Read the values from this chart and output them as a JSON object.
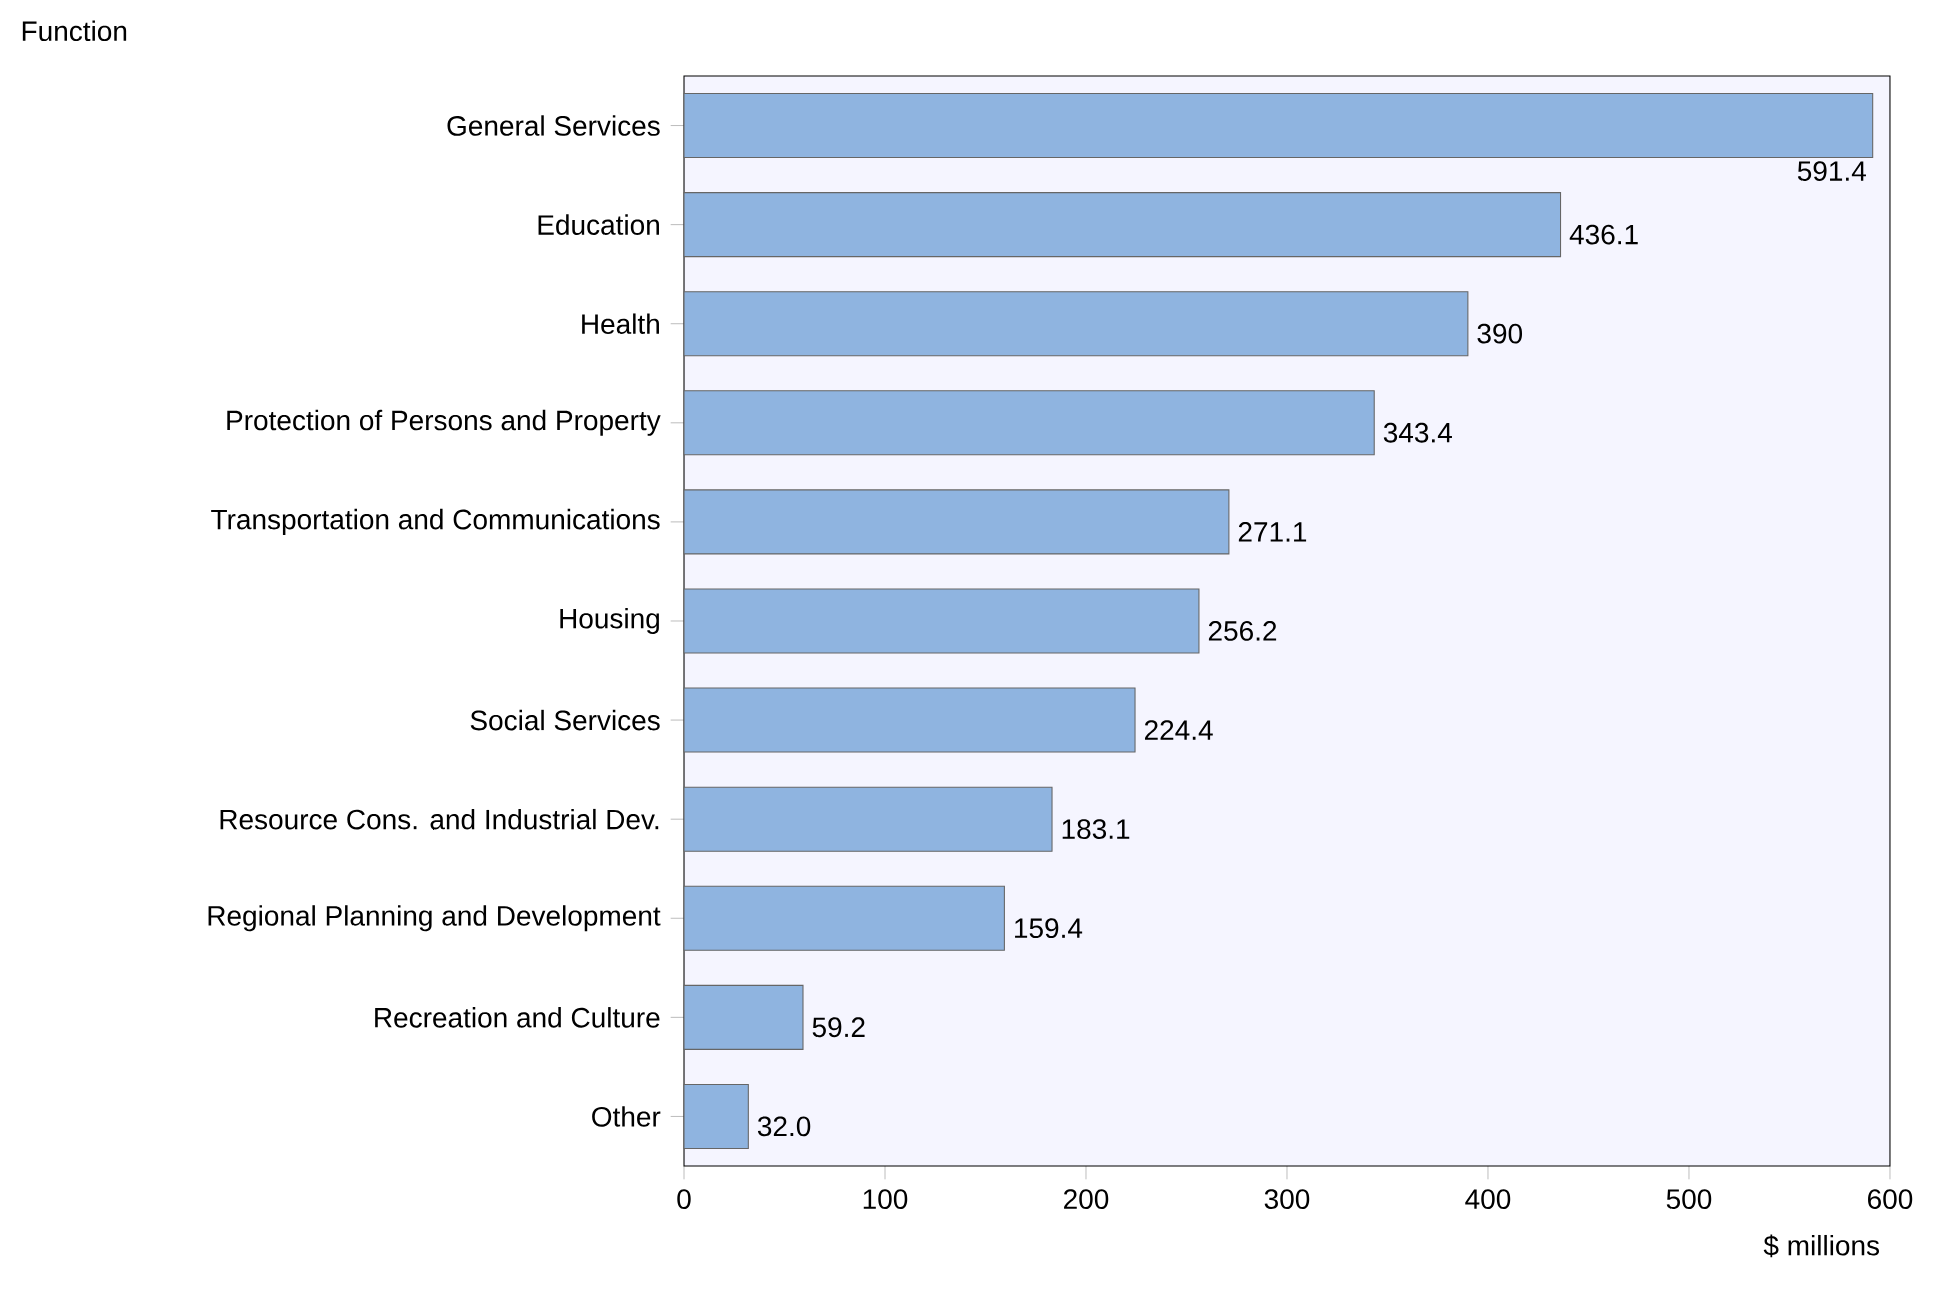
{
  "chart_data": {
    "type": "bar",
    "orientation": "horizontal",
    "xlabel": "$ millions",
    "annotations": [
      "Function"
    ],
    "categories": [
      "General Services",
      "Education",
      "Health",
      "Protection of Persons and Property",
      "Transportation and Communications",
      "Housing",
      "Social Services",
      "Resource Cons. and Industrial Dev.",
      "Regional Planning and Development",
      "Recreation and Culture",
      "Other"
    ],
    "values": [
      591.4,
      436.1,
      390,
      343.4,
      271.1,
      256.2,
      224.4,
      183.1,
      159.4,
      59.2,
      32.0
    ],
    "value_labels": [
      "591.4",
      "436.1",
      "390",
      "343.4",
      "271.1",
      "256.2",
      "224.4",
      "183.1",
      "159.4",
      "59.2",
      "32.0"
    ],
    "color": "#8fb4e0",
    "xlim": [
      0,
      600
    ],
    "xticks": [
      0,
      100,
      200,
      300,
      400,
      500,
      600
    ],
    "grid": false
  }
}
